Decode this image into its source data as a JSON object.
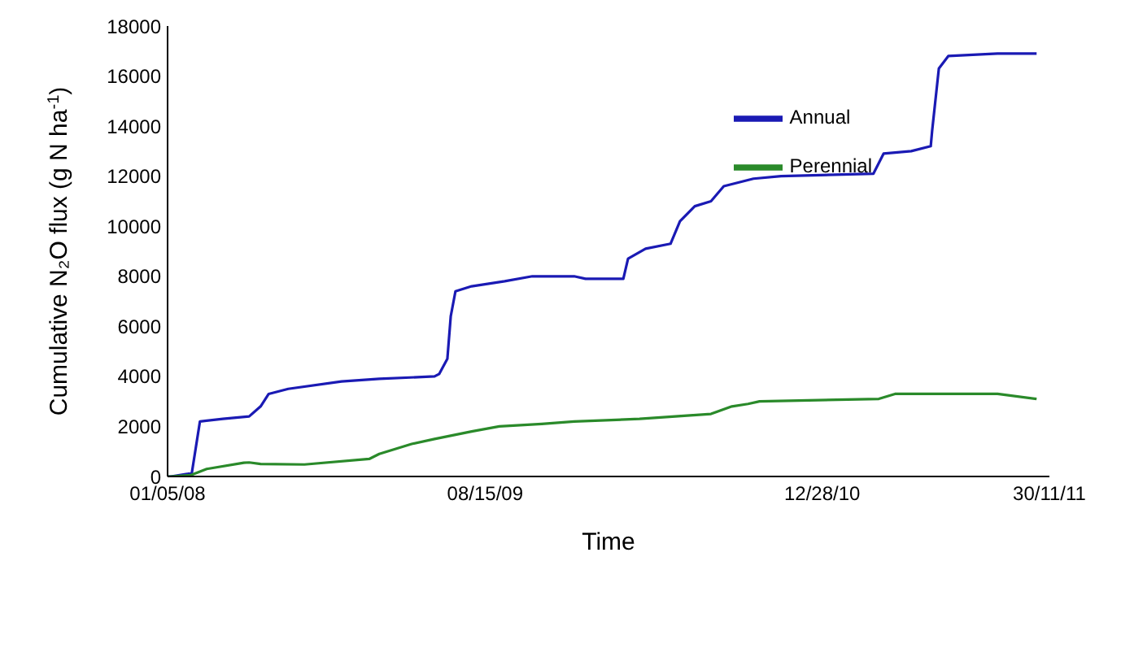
{
  "chart_data": {
    "type": "line",
    "xlabel": "Time",
    "ylabel": "Cumulative N₂O flux (g N ha$^{-1}$)",
    "xlim": [
      "2008-05-01",
      "2011-11-30"
    ],
    "xticks": [
      {
        "value": "2008-05-01",
        "label": "01/05/08"
      },
      {
        "value": "2009-08-15",
        "label": "08/15/09"
      },
      {
        "value": "2010-12-28",
        "label": "12/28/10"
      },
      {
        "value": "2011-11-30",
        "label": "30/11/11"
      }
    ],
    "ylim": [
      0,
      18000
    ],
    "yticks": [
      0,
      2000,
      4000,
      6000,
      8000,
      10000,
      12000,
      14000,
      16000,
      18000
    ],
    "legend": "top right",
    "marker": "none",
    "line_style": "solid",
    "series": [
      {
        "name": "Annual",
        "color": "#1a1ab4",
        "x": [
          "2008-05-01",
          "2008-05-06",
          "2008-05-30",
          "2008-06-06",
          "2008-06-18",
          "2008-07-22",
          "2008-08-30",
          "2008-09-16",
          "2008-09-28",
          "2008-10-27",
          "2009-01-14",
          "2009-03-11",
          "2009-06-01",
          "2009-06-08",
          "2009-06-20",
          "2009-06-25",
          "2009-07-02",
          "2009-07-26",
          "2009-09-13",
          "2009-10-24",
          "2009-12-25",
          "2010-01-11",
          "2010-03-08",
          "2010-03-15",
          "2010-04-10",
          "2010-05-17",
          "2010-05-31",
          "2010-06-22",
          "2010-07-16",
          "2010-08-04",
          "2010-09-17",
          "2010-10-28",
          "2011-03-14",
          "2011-03-29",
          "2011-05-09",
          "2011-06-07",
          "2011-06-09",
          "2011-06-19",
          "2011-07-03",
          "2011-09-14",
          "2011-11-11"
        ],
        "values": [
          0,
          0,
          100,
          150,
          2200,
          2300,
          2400,
          2800,
          3300,
          3500,
          3800,
          3900,
          4000,
          4100,
          4700,
          6400,
          7400,
          7600,
          7800,
          8000,
          8000,
          7900,
          7900,
          8700,
          9100,
          9300,
          10200,
          10800,
          11000,
          11600,
          11900,
          12000,
          12100,
          12900,
          13000,
          13200,
          13800,
          16300,
          16800,
          16900,
          16900
        ]
      },
      {
        "name": "Perennial",
        "color": "#2a8a2a",
        "x": [
          "2008-05-01",
          "2008-05-06",
          "2008-06-04",
          "2008-06-28",
          "2008-08-22",
          "2008-08-30",
          "2008-09-16",
          "2008-11-20",
          "2009-02-24",
          "2009-03-11",
          "2009-04-28",
          "2009-06-01",
          "2009-07-26",
          "2009-09-05",
          "2009-11-07",
          "2009-12-25",
          "2010-04-01",
          "2010-07-16",
          "2010-08-16",
          "2010-09-09",
          "2010-09-26",
          "2011-03-22",
          "2011-04-15",
          "2011-09-14",
          "2011-11-11"
        ],
        "values": [
          0,
          0,
          50,
          300,
          550,
          560,
          500,
          480,
          700,
          900,
          1300,
          1500,
          1800,
          2000,
          2100,
          2200,
          2300,
          2500,
          2800,
          2900,
          3000,
          3100,
          3300,
          3300,
          3100
        ]
      }
    ]
  }
}
